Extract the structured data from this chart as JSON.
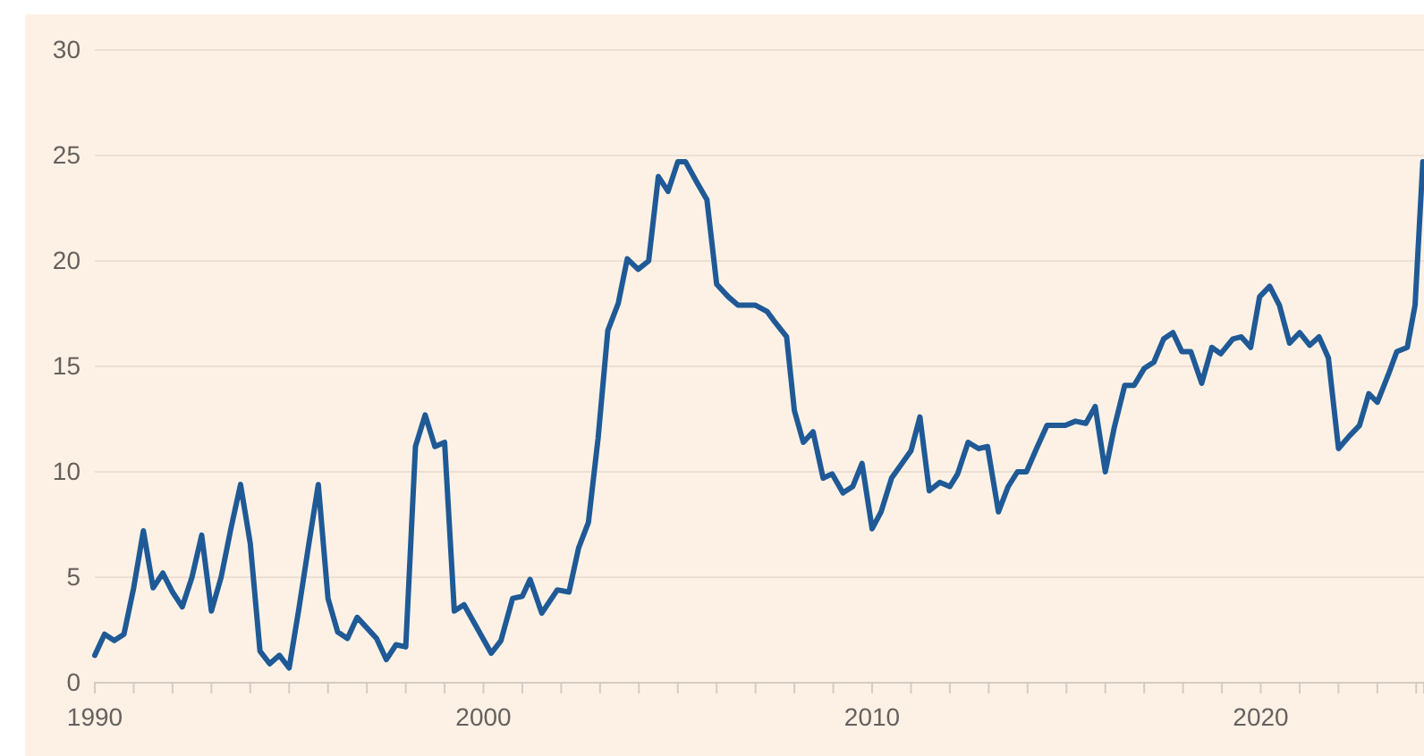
{
  "chart_data": {
    "type": "line",
    "xlim": [
      1990,
      2024.2
    ],
    "ylim": [
      0,
      30
    ],
    "yticks": [
      0,
      5,
      10,
      15,
      20,
      25,
      30
    ],
    "xticks": [
      1990,
      {
        "value": 1991,
        "label": null
      },
      {
        "value": 1992,
        "label": null
      },
      {
        "value": 1993,
        "label": null
      },
      {
        "value": 1994,
        "label": null
      },
      {
        "value": 1995,
        "label": null
      },
      {
        "value": 1996,
        "label": null
      },
      {
        "value": 1997,
        "label": null
      },
      {
        "value": 1998,
        "label": null
      },
      {
        "value": 1999,
        "label": null
      },
      2000,
      {
        "value": 2001,
        "label": null
      },
      {
        "value": 2002,
        "label": null
      },
      {
        "value": 2003,
        "label": null
      },
      {
        "value": 2004,
        "label": null
      },
      {
        "value": 2005,
        "label": null
      },
      {
        "value": 2006,
        "label": null
      },
      {
        "value": 2007,
        "label": null
      },
      {
        "value": 2008,
        "label": null
      },
      {
        "value": 2009,
        "label": null
      },
      2010,
      {
        "value": 2011,
        "label": null
      },
      {
        "value": 2012,
        "label": null
      },
      {
        "value": 2013,
        "label": null
      },
      {
        "value": 2014,
        "label": null
      },
      {
        "value": 2015,
        "label": null
      },
      {
        "value": 2016,
        "label": null
      },
      {
        "value": 2017,
        "label": null
      },
      {
        "value": 2018,
        "label": null
      },
      {
        "value": 2019,
        "label": null
      },
      2020,
      {
        "value": 2021,
        "label": null
      },
      {
        "value": 2022,
        "label": null
      },
      {
        "value": 2023,
        "label": null
      },
      {
        "value": 2024,
        "label": null
      }
    ],
    "grid": "y",
    "line_style": "solid",
    "x": [
      1990.0,
      1990.25,
      1990.5,
      1990.75,
      1991.0,
      1991.25,
      1991.5,
      1991.75,
      1992.0,
      1992.25,
      1992.5,
      1992.75,
      1993.0,
      1993.25,
      1993.5,
      1993.75,
      1994.0,
      1994.25,
      1994.5,
      1994.75,
      1995.0,
      1995.25,
      1995.5,
      1995.75,
      1996.0,
      1996.25,
      1996.5,
      1996.75,
      1997.0,
      1997.25,
      1997.5,
      1997.75,
      1998.0,
      1998.25,
      1998.5,
      1998.75,
      1999.0,
      1999.25,
      1999.5,
      2000.2,
      2000.45,
      2000.75,
      2001.0,
      2001.2,
      2001.5,
      2001.9,
      2002.2,
      2002.45,
      2002.7,
      2002.95,
      2003.2,
      2003.47,
      2003.7,
      2003.98,
      2004.25,
      2004.5,
      2004.75,
      2005.0,
      2005.2,
      2005.5,
      2005.75,
      2006.0,
      2006.3,
      2006.55,
      2007.0,
      2007.3,
      2007.5,
      2007.8,
      2008.0,
      2008.23,
      2008.48,
      2008.74,
      2008.97,
      2009.25,
      2009.5,
      2009.74,
      2010.0,
      2010.23,
      2010.5,
      2011.0,
      2011.23,
      2011.47,
      2011.74,
      2012.0,
      2012.2,
      2012.47,
      2012.74,
      2012.97,
      2013.25,
      2013.5,
      2013.74,
      2013.97,
      2014.23,
      2014.5,
      2014.97,
      2015.23,
      2015.5,
      2015.74,
      2016.0,
      2016.23,
      2016.5,
      2016.74,
      2017.0,
      2017.25,
      2017.5,
      2017.74,
      2017.97,
      2018.2,
      2018.48,
      2018.74,
      2018.97,
      2019.28,
      2019.5,
      2019.74,
      2019.97,
      2020.23,
      2020.48,
      2020.74,
      2021.0,
      2021.26,
      2021.5,
      2021.74,
      2022.0,
      2022.28,
      2022.54,
      2022.78,
      2023.0,
      2023.28,
      2023.5,
      2023.77,
      2023.97,
      2024.17
    ],
    "series": [
      {
        "color": "#1f5a96",
        "values": [
          1.3,
          2.3,
          2.0,
          2.3,
          4.5,
          7.2,
          4.5,
          5.2,
          4.3,
          3.6,
          5.0,
          7.0,
          3.4,
          5.0,
          7.3,
          9.4,
          6.6,
          1.5,
          0.9,
          1.3,
          0.7,
          3.5,
          6.5,
          9.4,
          4.0,
          2.4,
          2.1,
          3.1,
          2.6,
          2.1,
          1.1,
          1.8,
          1.7,
          11.2,
          12.7,
          11.2,
          11.4,
          3.4,
          3.7,
          1.4,
          2.0,
          4.0,
          4.1,
          4.9,
          3.3,
          4.4,
          4.3,
          6.4,
          7.6,
          11.6,
          16.7,
          18.0,
          20.1,
          19.6,
          20.0,
          24.0,
          23.3,
          24.7,
          24.7,
          23.7,
          22.9,
          18.9,
          18.3,
          17.9,
          17.9,
          17.6,
          17.1,
          16.4,
          12.9,
          11.4,
          11.9,
          9.7,
          9.9,
          9.0,
          9.3,
          10.4,
          7.3,
          8.1,
          9.7,
          11.0,
          12.6,
          9.1,
          9.5,
          9.3,
          9.9,
          11.4,
          11.1,
          11.2,
          8.1,
          9.3,
          10.0,
          10.0,
          11.1,
          12.2,
          12.2,
          12.4,
          12.3,
          13.1,
          10.0,
          12.1,
          14.1,
          14.1,
          14.9,
          15.2,
          16.3,
          16.6,
          15.7,
          15.7,
          14.2,
          15.9,
          15.6,
          16.3,
          16.4,
          15.9,
          18.3,
          18.8,
          17.9,
          16.1,
          16.6,
          16.0,
          16.4,
          15.4,
          11.1,
          11.7,
          12.2,
          13.7,
          13.3,
          14.6,
          15.7,
          15.9,
          17.9,
          24.7
        ]
      }
    ]
  }
}
